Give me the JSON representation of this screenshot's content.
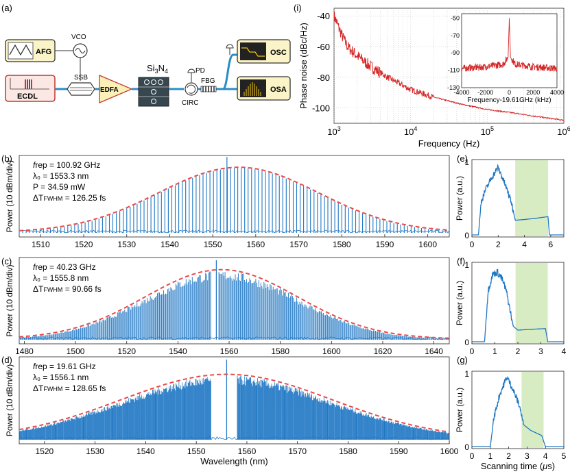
{
  "panel_labels": {
    "a": "(a)",
    "b": "(b)",
    "c": "(c)",
    "d": "(d)",
    "e": "(e)",
    "f": "(f)",
    "g": "(g)",
    "i": "(i)"
  },
  "setup": {
    "afg": "AFG",
    "vco": "VCO",
    "ecdl": "ECDL",
    "ssb": "SSB",
    "edfa": "EDFA",
    "chip_main": "Si",
    "chip_sub1": "3",
    "chip_n": "N",
    "chip_sub2": "4",
    "pd_top": "PD",
    "circ": "CIRC",
    "fbg": "FBG",
    "pd_right": "",
    "osc": "OSC",
    "osa": "OSA"
  },
  "colors": {
    "spectrum": "#1f77c4",
    "envelope": "#e84a4a",
    "phase_noise": "#d62728",
    "shade": "#d8ecc4"
  },
  "chart_data": [
    {
      "id": "i",
      "type": "line",
      "xscale": "log",
      "xlabel": "Frequency (Hz)",
      "ylabel": "Phase noise (dBc/Hz)",
      "xlim": [
        1000,
        1000000
      ],
      "ylim": [
        -110,
        -35
      ],
      "xticks": [
        "10^3",
        "10^4",
        "10^5",
        "10^6"
      ],
      "yticks": [
        -40,
        -60,
        -80,
        -100
      ],
      "grid": true,
      "series": [
        {
          "x": [
            1000,
            1100,
            1300,
            1500,
            2000,
            3000,
            5000,
            10000,
            20000,
            50000,
            100000,
            200000,
            500000,
            1000000
          ],
          "y": [
            -40,
            -45,
            -54,
            -60,
            -66,
            -73,
            -80,
            -88,
            -93,
            -98,
            -101,
            -103,
            -106,
            -108
          ]
        }
      ],
      "inset": {
        "type": "line",
        "xlabel": "Frequency-19.61GHz (kHz)",
        "xlim": [
          -4000,
          4000
        ],
        "ylim": [
          -130,
          -45
        ],
        "xticks": [
          -4000,
          -2000,
          0,
          2000,
          4000
        ],
        "yticks": [
          -50,
          -70,
          -90,
          -110,
          -130
        ],
        "series": [
          {
            "x": [
              -4000,
              -2000,
              -500,
              -100,
              0,
              100,
              500,
              2000,
              4000
            ],
            "y": [
              -108,
              -106,
              -103,
              -95,
              -50,
              -95,
              -103,
              -106,
              -108
            ]
          }
        ]
      }
    },
    {
      "id": "b",
      "type": "line",
      "ylabel": "Power (10 dBm/div)",
      "xlim": [
        1505,
        1605
      ],
      "xticks": [
        1510,
        1520,
        1530,
        1540,
        1550,
        1560,
        1570,
        1580,
        1590,
        1600
      ],
      "annotations": [
        "frep = 100.92 GHz",
        "λ₀ = 1553.3 nm",
        "P = 34.59 mW",
        "ΔT_FWHM = 126.25 fs"
      ],
      "comb_spacing_nm": 0.81,
      "envelope_center": 1556,
      "envelope_width": 25
    },
    {
      "id": "c",
      "type": "line",
      "ylabel": "Power (10 dBm/div)",
      "xlim": [
        1478,
        1646
      ],
      "xticks": [
        1480,
        1500,
        1520,
        1540,
        1560,
        1580,
        1600,
        1620,
        1640
      ],
      "annotations": [
        "frep = 40.23 GHz",
        "λ₀ = 1555.8 nm",
        "ΔT_FWHM = 90.66 fs"
      ],
      "envelope_center": 1557,
      "envelope_width": 40,
      "gap": [
        1553,
        1556
      ]
    },
    {
      "id": "d",
      "type": "line",
      "ylabel": "Power (10 dBm/div)",
      "xlabel": "Wavelength (nm)",
      "xlim": [
        1515,
        1600
      ],
      "xticks": [
        1520,
        1530,
        1540,
        1550,
        1560,
        1570,
        1580,
        1590,
        1600
      ],
      "annotations": [
        "frep = 19.61 GHz",
        "λ₀ = 1556.1 nm",
        "ΔT_FWHM = 128.65 fs"
      ],
      "envelope_center": 1556,
      "envelope_width": 28,
      "gap": [
        1553,
        1558
      ]
    },
    {
      "id": "e",
      "type": "line",
      "ylabel": "Power (a.u.)",
      "xlim": [
        0,
        7
      ],
      "ylim": [
        0,
        1
      ],
      "xticks": [
        0,
        2,
        4,
        6
      ],
      "yticks": [
        0,
        1
      ],
      "shade": [
        3.3,
        5.8
      ],
      "series": [
        {
          "x": [
            0,
            0.5,
            0.7,
            1,
            1.5,
            2,
            2.2,
            2.5,
            3,
            3.3,
            4,
            5,
            5.8,
            5.9,
            7
          ],
          "y": [
            0,
            0,
            0.45,
            0.6,
            0.78,
            0.92,
            0.83,
            0.7,
            0.45,
            0.2,
            0.21,
            0.23,
            0.25,
            0,
            0
          ]
        }
      ]
    },
    {
      "id": "f",
      "type": "line",
      "ylabel": "Power (a.u.)",
      "xlim": [
        0,
        4
      ],
      "ylim": [
        0,
        1
      ],
      "xticks": [
        0,
        1,
        2,
        3,
        4
      ],
      "yticks": [
        0,
        1
      ],
      "shade": [
        1.9,
        3.3
      ],
      "series": [
        {
          "x": [
            0,
            0.55,
            0.7,
            0.9,
            1.1,
            1.3,
            1.5,
            1.8,
            2,
            2.5,
            3.2,
            3.3,
            4
          ],
          "y": [
            0,
            0,
            0.65,
            0.87,
            0.9,
            0.82,
            0.65,
            0.2,
            0.15,
            0.16,
            0.17,
            0,
            0
          ]
        }
      ]
    },
    {
      "id": "g",
      "type": "line",
      "ylabel": "Power (a.u.)",
      "xlabel": "Scanning time (μs)",
      "xlim": [
        0,
        5
      ],
      "ylim": [
        0,
        1
      ],
      "xticks": [
        0,
        1,
        2,
        3,
        4,
        5
      ],
      "yticks": [
        0,
        1
      ],
      "shade": [
        2.7,
        3.9
      ],
      "series": [
        {
          "x": [
            0,
            1,
            1.2,
            1.5,
            1.9,
            2.2,
            2.6,
            2.8,
            3.2,
            3.8,
            4,
            5
          ],
          "y": [
            0,
            0,
            0.4,
            0.7,
            0.95,
            0.8,
            0.55,
            0.3,
            0.22,
            0.15,
            0,
            0
          ]
        }
      ]
    }
  ]
}
